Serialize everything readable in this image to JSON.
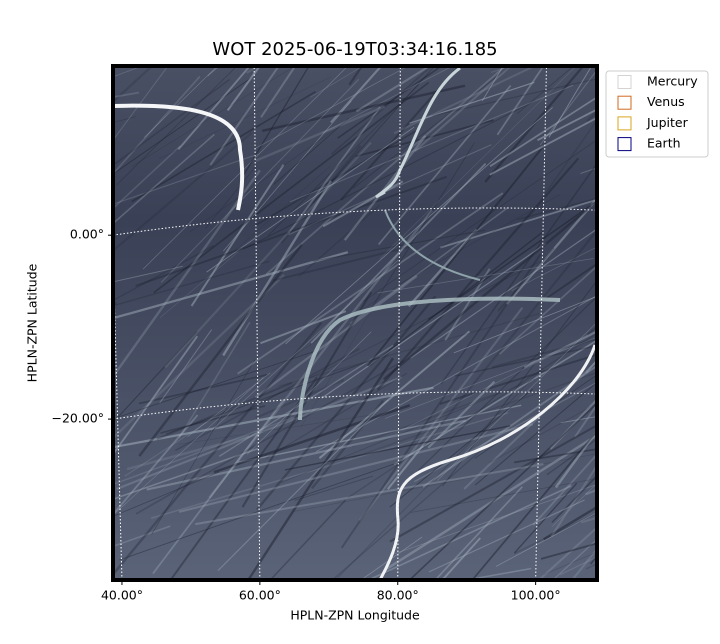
{
  "chart_data": {
    "type": "image",
    "title": "WOT 2025-06-19T03:34:16.185",
    "x_label": "HPLN-ZPN Longitude",
    "y_label": "HPLN-ZPN Latitude",
    "xlim": [
      38.7,
      108.9
    ],
    "ylim": [
      -37.5,
      18.4
    ],
    "xticks": [
      {
        "value": 40,
        "label": "40.00°"
      },
      {
        "value": 60,
        "label": "60.00°"
      },
      {
        "value": 80,
        "label": "80.00°"
      },
      {
        "value": 100,
        "label": "100.00°"
      }
    ],
    "yticks": [
      {
        "value": -20,
        "label": "−20.00°"
      },
      {
        "value": 0,
        "label": "0.00°"
      }
    ],
    "grid": true,
    "legend": "upper right",
    "series": [
      {
        "name": "Mercury",
        "color": "#d3d3d3"
      },
      {
        "name": "Venus",
        "color": "#d2691e"
      },
      {
        "name": "Jupiter",
        "color": "#daa520"
      },
      {
        "name": "Earth",
        "color": "#000080"
      }
    ]
  }
}
